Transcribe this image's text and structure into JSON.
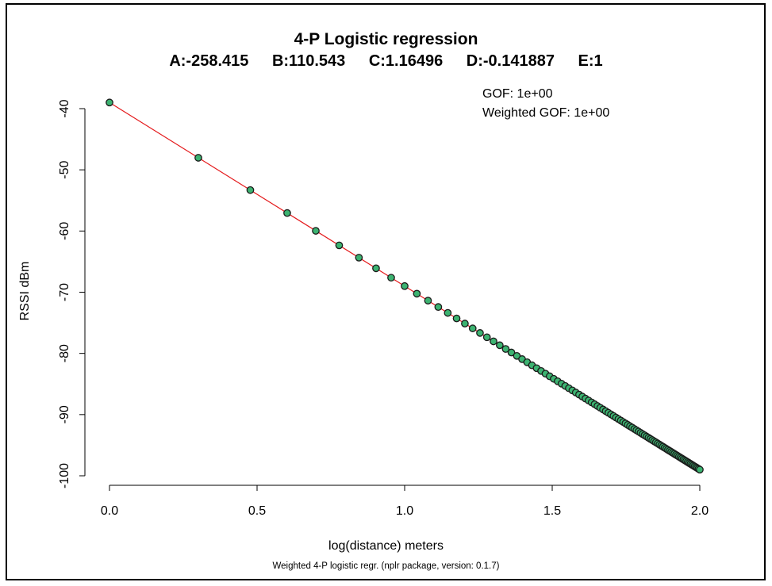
{
  "chart_data": {
    "type": "scatter",
    "title": "4-P Logistic regression",
    "params": [
      "A:-258.415",
      "B:110.543",
      "C:1.16496",
      "D:-0.141887",
      "E:1"
    ],
    "annotations": [
      "GOF: 1e+00",
      "Weighted GOF: 1e+00"
    ],
    "xlabel": "log(distance) meters",
    "ylabel": "RSSI dBm",
    "footnote": "Weighted 4-P logistic regr. (nplr package, version: 0.1.7)",
    "xlim": [
      0,
      2
    ],
    "ylim": [
      -100,
      -40
    ],
    "xticks": [
      0,
      0.5,
      1,
      1.5,
      2
    ],
    "xtick_labels": [
      "0.0",
      "0.5",
      "1.0",
      "1.5",
      "2.0"
    ],
    "yticks": [
      -40,
      -50,
      -60,
      -70,
      -80,
      -90,
      -100
    ],
    "ytick_labels": [
      "-40",
      "-50",
      "-60",
      "-70",
      "-80",
      "-90",
      "-100"
    ],
    "grid": false,
    "fit_line": {
      "from": [
        0,
        -39.0
      ],
      "to": [
        2,
        -99.0
      ],
      "color": "#e41a1c"
    },
    "point_color": "#3cb371",
    "point_edge": "#1a1a1a",
    "series": [
      {
        "distance_min": 1,
        "distance_max": 100,
        "rssi_at_1m": -39.0,
        "slope_per_log10": -30.0
      }
    ]
  }
}
